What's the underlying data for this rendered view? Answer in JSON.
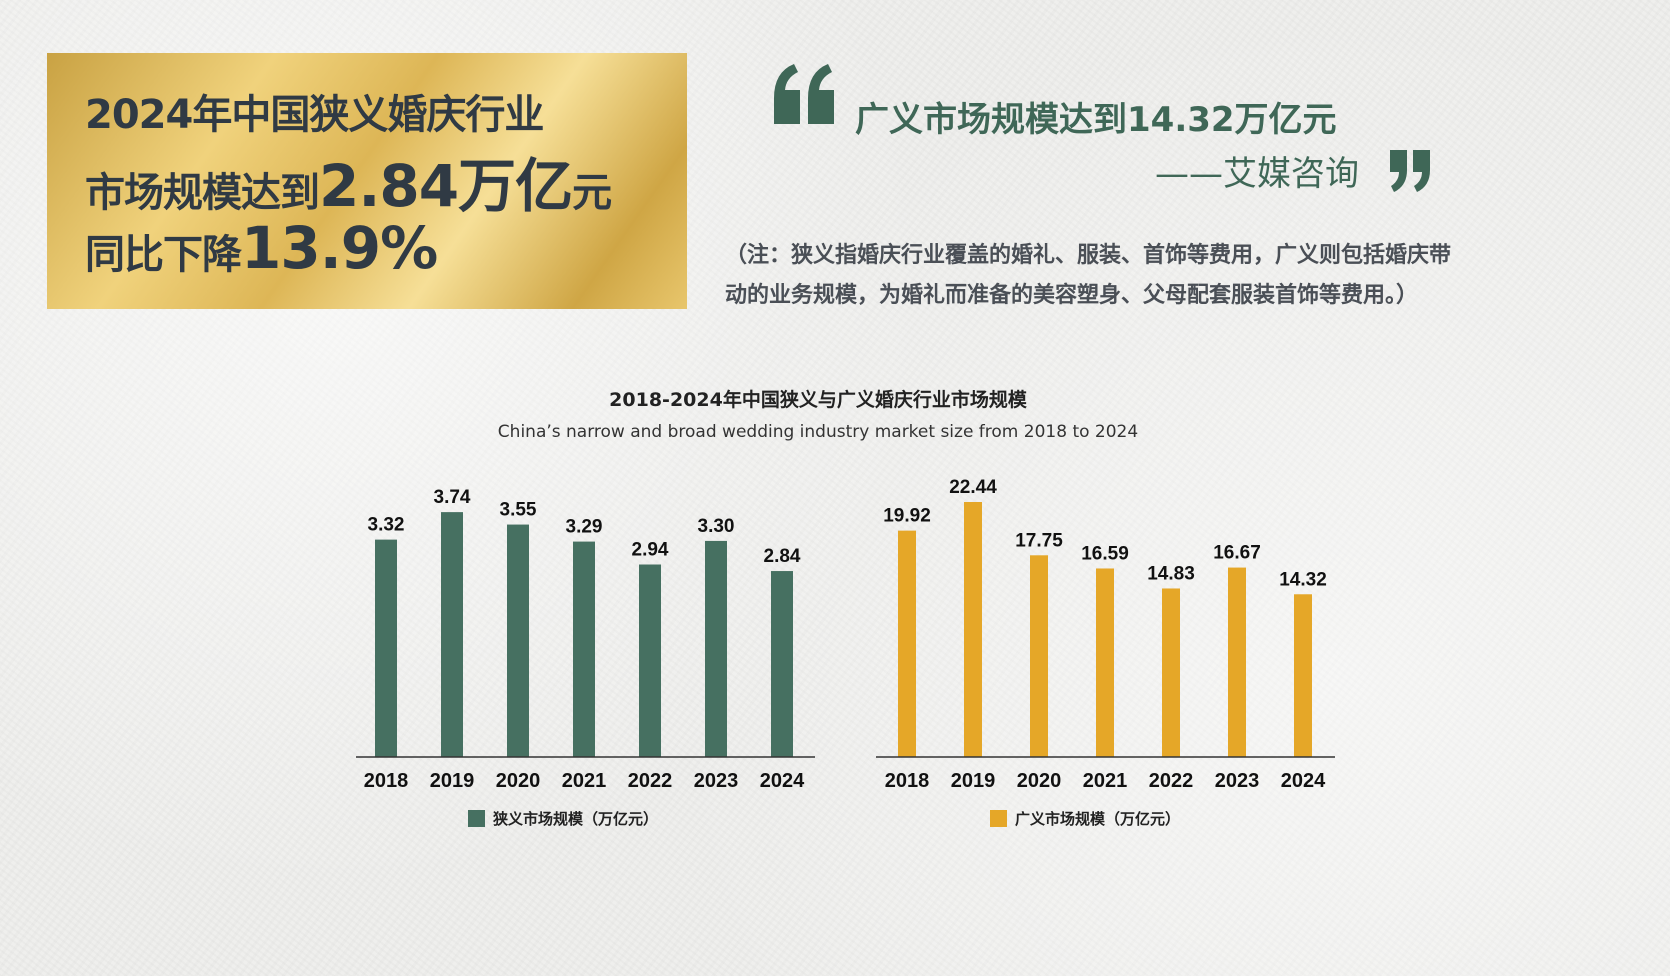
{
  "headline": {
    "line1": "2024年中国狭义婚庆行业",
    "line2_prefix": "市场规模达到",
    "line2_value": "2.84万亿",
    "line2_suffix": "元",
    "line3_prefix": "同比下降",
    "line3_value": "13.9%"
  },
  "quote": {
    "text": "广义市场规模达到14.32万亿元",
    "source": "——艾媒咨询"
  },
  "note": {
    "line1": "（注：狭义指婚庆行业覆盖的婚礼、服装、首饰等费用，广义则包括婚庆带",
    "line2": "动的业务规模，为婚礼而准备的美容塑身、父母配套服装首饰等费用。）"
  },
  "colors": {
    "narrow": "#467061",
    "broad": "#e5a728",
    "quote": "#3f6757"
  },
  "chart_data": {
    "title": "2018-2024年中国狭义与广义婚庆行业市场规模",
    "subtitle": "China’s narrow and broad wedding industry market size from 2018 to 2024",
    "charts": [
      {
        "type": "bar",
        "categories": [
          "2018",
          "2019",
          "2020",
          "2021",
          "2022",
          "2023",
          "2024"
        ],
        "series": [
          {
            "name": "狭义市场规模（万亿元）",
            "values": [
              3.32,
              3.74,
              3.55,
              3.29,
              2.94,
              3.3,
              2.84
            ]
          }
        ],
        "labels": [
          "3.32",
          "3.74",
          "3.55",
          "3.29",
          "2.94",
          "3.30",
          "2.84"
        ],
        "ylim": [
          0,
          4.2
        ],
        "grid": false,
        "legend": "bottom"
      },
      {
        "type": "bar",
        "categories": [
          "2018",
          "2019",
          "2020",
          "2021",
          "2022",
          "2023",
          "2024"
        ],
        "series": [
          {
            "name": "广义市场规模（万亿元）",
            "values": [
              19.92,
              22.44,
              17.75,
              16.59,
              14.83,
              16.67,
              14.32
            ]
          }
        ],
        "labels": [
          "19.92",
          "22.44",
          "17.75",
          "16.59",
          "14.83",
          "16.67",
          "14.32"
        ],
        "ylim": [
          0,
          24.2
        ],
        "grid": false,
        "legend": "bottom"
      }
    ]
  }
}
